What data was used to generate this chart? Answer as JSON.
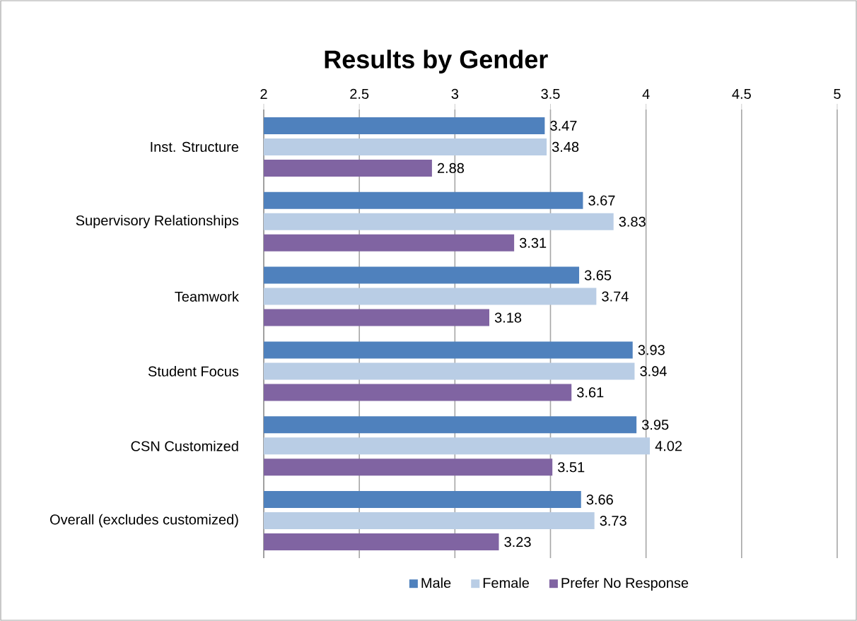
{
  "chart_data": {
    "type": "bar",
    "title": "Results by Gender",
    "orientation": "horizontal",
    "categories": [
      "Inst. Structure",
      "Supervisory Relationships",
      "Teamwork",
      "Student Focus",
      "CSN Customized",
      "Overall (excludes customized)"
    ],
    "series": [
      {
        "name": "Male",
        "color": "#4f81bd",
        "values": [
          3.47,
          3.67,
          3.65,
          3.93,
          3.95,
          3.66
        ]
      },
      {
        "name": "Female",
        "color": "#b9cde5",
        "values": [
          3.48,
          3.83,
          3.74,
          3.94,
          4.02,
          3.73
        ]
      },
      {
        "name": "Prefer No Response",
        "color": "#8064a2",
        "values": [
          2.88,
          3.31,
          3.18,
          3.61,
          3.51,
          3.23
        ]
      }
    ],
    "xlim": [
      2,
      5
    ],
    "xticks": [
      2,
      2.5,
      3,
      3.5,
      4,
      4.5,
      5
    ],
    "grid": "x",
    "legend": "bottom",
    "data_labels": true
  }
}
